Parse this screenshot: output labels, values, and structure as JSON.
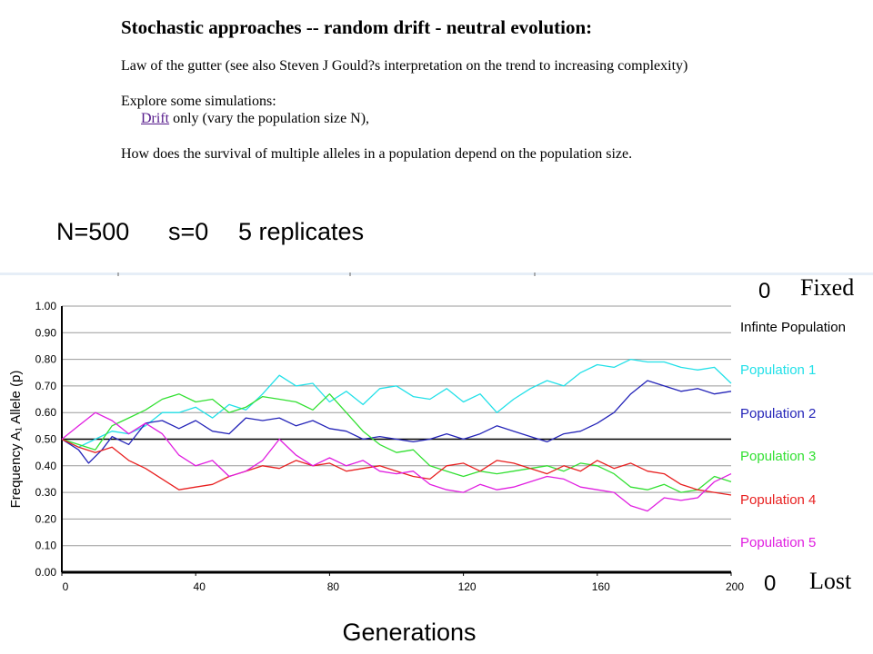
{
  "document": {
    "heading": "Stochastic approaches -- random drift - neutral evolution:",
    "para1": "Law of the gutter (see also Steven J Gould?s interpretation on the trend to increasing complexity)",
    "para2_intro": "Explore some simulations:",
    "drift_link": "Drift",
    "drift_rest": " only (vary the population size N),",
    "para3": "How does the survival of multiple alleles in a population depend on the population size."
  },
  "params": {
    "n_label": "N=500",
    "s_label": "s=0",
    "replicates_label": "5 replicates"
  },
  "chart_data": {
    "type": "line",
    "xlabel": "Generations",
    "ylabel": "Frequency A₁ Allele (p)",
    "xlim": [
      0,
      200
    ],
    "ylim": [
      0,
      1
    ],
    "x_ticks": [
      "0",
      "40",
      "80",
      "120",
      "160",
      "200"
    ],
    "y_ticks": [
      "0.00",
      "0.10",
      "0.20",
      "0.30",
      "0.40",
      "0.50",
      "0.60",
      "0.70",
      "0.80",
      "0.90",
      "1.00"
    ],
    "grid": true,
    "legend": "right",
    "fixed_count": "0",
    "fixed_label": "Fixed",
    "lost_count": "0",
    "lost_label": "Lost",
    "series": [
      {
        "name": "Infinte Population",
        "color": "#000000",
        "points": [
          [
            0,
            0.5
          ],
          [
            200,
            0.5
          ]
        ]
      },
      {
        "name": "Population 1",
        "color": "#22e0e8",
        "points": [
          [
            0,
            0.5
          ],
          [
            5,
            0.47
          ],
          [
            10,
            0.5
          ],
          [
            15,
            0.53
          ],
          [
            20,
            0.52
          ],
          [
            25,
            0.55
          ],
          [
            30,
            0.6
          ],
          [
            35,
            0.6
          ],
          [
            40,
            0.62
          ],
          [
            45,
            0.58
          ],
          [
            50,
            0.63
          ],
          [
            55,
            0.61
          ],
          [
            60,
            0.67
          ],
          [
            65,
            0.74
          ],
          [
            70,
            0.7
          ],
          [
            75,
            0.71
          ],
          [
            80,
            0.64
          ],
          [
            85,
            0.68
          ],
          [
            90,
            0.63
          ],
          [
            95,
            0.69
          ],
          [
            100,
            0.7
          ],
          [
            105,
            0.66
          ],
          [
            110,
            0.65
          ],
          [
            115,
            0.69
          ],
          [
            120,
            0.64
          ],
          [
            125,
            0.67
          ],
          [
            130,
            0.6
          ],
          [
            135,
            0.65
          ],
          [
            140,
            0.69
          ],
          [
            145,
            0.72
          ],
          [
            150,
            0.7
          ],
          [
            155,
            0.75
          ],
          [
            160,
            0.78
          ],
          [
            165,
            0.77
          ],
          [
            170,
            0.8
          ],
          [
            175,
            0.79
          ],
          [
            180,
            0.79
          ],
          [
            185,
            0.77
          ],
          [
            190,
            0.76
          ],
          [
            195,
            0.77
          ],
          [
            200,
            0.71
          ]
        ]
      },
      {
        "name": "Population 2",
        "color": "#2424b8",
        "points": [
          [
            0,
            0.5
          ],
          [
            5,
            0.46
          ],
          [
            8,
            0.41
          ],
          [
            12,
            0.46
          ],
          [
            15,
            0.51
          ],
          [
            20,
            0.48
          ],
          [
            25,
            0.56
          ],
          [
            30,
            0.57
          ],
          [
            35,
            0.54
          ],
          [
            40,
            0.57
          ],
          [
            45,
            0.53
          ],
          [
            50,
            0.52
          ],
          [
            55,
            0.58
          ],
          [
            60,
            0.57
          ],
          [
            65,
            0.58
          ],
          [
            70,
            0.55
          ],
          [
            75,
            0.57
          ],
          [
            80,
            0.54
          ],
          [
            85,
            0.53
          ],
          [
            90,
            0.5
          ],
          [
            95,
            0.51
          ],
          [
            100,
            0.5
          ],
          [
            105,
            0.49
          ],
          [
            110,
            0.5
          ],
          [
            115,
            0.52
          ],
          [
            120,
            0.5
          ],
          [
            125,
            0.52
          ],
          [
            130,
            0.55
          ],
          [
            135,
            0.53
          ],
          [
            140,
            0.51
          ],
          [
            145,
            0.49
          ],
          [
            150,
            0.52
          ],
          [
            155,
            0.53
          ],
          [
            160,
            0.56
          ],
          [
            165,
            0.6
          ],
          [
            170,
            0.67
          ],
          [
            175,
            0.72
          ],
          [
            180,
            0.7
          ],
          [
            185,
            0.68
          ],
          [
            190,
            0.69
          ],
          [
            195,
            0.67
          ],
          [
            200,
            0.68
          ]
        ]
      },
      {
        "name": "Population 3",
        "color": "#33e033",
        "points": [
          [
            0,
            0.5
          ],
          [
            5,
            0.48
          ],
          [
            10,
            0.46
          ],
          [
            15,
            0.55
          ],
          [
            20,
            0.58
          ],
          [
            25,
            0.61
          ],
          [
            30,
            0.65
          ],
          [
            35,
            0.67
          ],
          [
            40,
            0.64
          ],
          [
            45,
            0.65
          ],
          [
            50,
            0.6
          ],
          [
            55,
            0.62
          ],
          [
            60,
            0.66
          ],
          [
            65,
            0.65
          ],
          [
            70,
            0.64
          ],
          [
            75,
            0.61
          ],
          [
            80,
            0.67
          ],
          [
            85,
            0.6
          ],
          [
            90,
            0.53
          ],
          [
            95,
            0.48
          ],
          [
            100,
            0.45
          ],
          [
            105,
            0.46
          ],
          [
            110,
            0.4
          ],
          [
            115,
            0.38
          ],
          [
            120,
            0.36
          ],
          [
            125,
            0.38
          ],
          [
            130,
            0.37
          ],
          [
            135,
            0.38
          ],
          [
            140,
            0.39
          ],
          [
            145,
            0.4
          ],
          [
            150,
            0.38
          ],
          [
            155,
            0.41
          ],
          [
            160,
            0.4
          ],
          [
            165,
            0.37
          ],
          [
            170,
            0.32
          ],
          [
            175,
            0.31
          ],
          [
            180,
            0.33
          ],
          [
            185,
            0.3
          ],
          [
            190,
            0.31
          ],
          [
            195,
            0.36
          ],
          [
            200,
            0.34
          ]
        ]
      },
      {
        "name": "Population 4",
        "color": "#e82020",
        "points": [
          [
            0,
            0.5
          ],
          [
            5,
            0.47
          ],
          [
            10,
            0.45
          ],
          [
            15,
            0.47
          ],
          [
            20,
            0.42
          ],
          [
            25,
            0.39
          ],
          [
            30,
            0.35
          ],
          [
            35,
            0.31
          ],
          [
            40,
            0.32
          ],
          [
            45,
            0.33
          ],
          [
            50,
            0.36
          ],
          [
            55,
            0.38
          ],
          [
            60,
            0.4
          ],
          [
            65,
            0.39
          ],
          [
            70,
            0.42
          ],
          [
            75,
            0.4
          ],
          [
            80,
            0.41
          ],
          [
            85,
            0.38
          ],
          [
            90,
            0.39
          ],
          [
            95,
            0.4
          ],
          [
            100,
            0.38
          ],
          [
            105,
            0.36
          ],
          [
            110,
            0.35
          ],
          [
            115,
            0.4
          ],
          [
            120,
            0.41
          ],
          [
            125,
            0.38
          ],
          [
            130,
            0.42
          ],
          [
            135,
            0.41
          ],
          [
            140,
            0.39
          ],
          [
            145,
            0.37
          ],
          [
            150,
            0.4
          ],
          [
            155,
            0.38
          ],
          [
            160,
            0.42
          ],
          [
            165,
            0.39
          ],
          [
            170,
            0.41
          ],
          [
            175,
            0.38
          ],
          [
            180,
            0.37
          ],
          [
            185,
            0.33
          ],
          [
            190,
            0.31
          ],
          [
            195,
            0.3
          ],
          [
            200,
            0.29
          ]
        ]
      },
      {
        "name": "Population 5",
        "color": "#e01ee0",
        "points": [
          [
            0,
            0.5
          ],
          [
            5,
            0.55
          ],
          [
            10,
            0.6
          ],
          [
            15,
            0.57
          ],
          [
            20,
            0.52
          ],
          [
            25,
            0.56
          ],
          [
            30,
            0.52
          ],
          [
            35,
            0.44
          ],
          [
            40,
            0.4
          ],
          [
            45,
            0.42
          ],
          [
            50,
            0.36
          ],
          [
            55,
            0.38
          ],
          [
            60,
            0.42
          ],
          [
            65,
            0.5
          ],
          [
            70,
            0.44
          ],
          [
            75,
            0.4
          ],
          [
            80,
            0.43
          ],
          [
            85,
            0.4
          ],
          [
            90,
            0.42
          ],
          [
            95,
            0.38
          ],
          [
            100,
            0.37
          ],
          [
            105,
            0.38
          ],
          [
            110,
            0.33
          ],
          [
            115,
            0.31
          ],
          [
            120,
            0.3
          ],
          [
            125,
            0.33
          ],
          [
            130,
            0.31
          ],
          [
            135,
            0.32
          ],
          [
            140,
            0.34
          ],
          [
            145,
            0.36
          ],
          [
            150,
            0.35
          ],
          [
            155,
            0.32
          ],
          [
            160,
            0.31
          ],
          [
            165,
            0.3
          ],
          [
            170,
            0.25
          ],
          [
            175,
            0.23
          ],
          [
            180,
            0.28
          ],
          [
            185,
            0.27
          ],
          [
            190,
            0.28
          ],
          [
            195,
            0.34
          ],
          [
            200,
            0.37
          ]
        ]
      }
    ]
  }
}
